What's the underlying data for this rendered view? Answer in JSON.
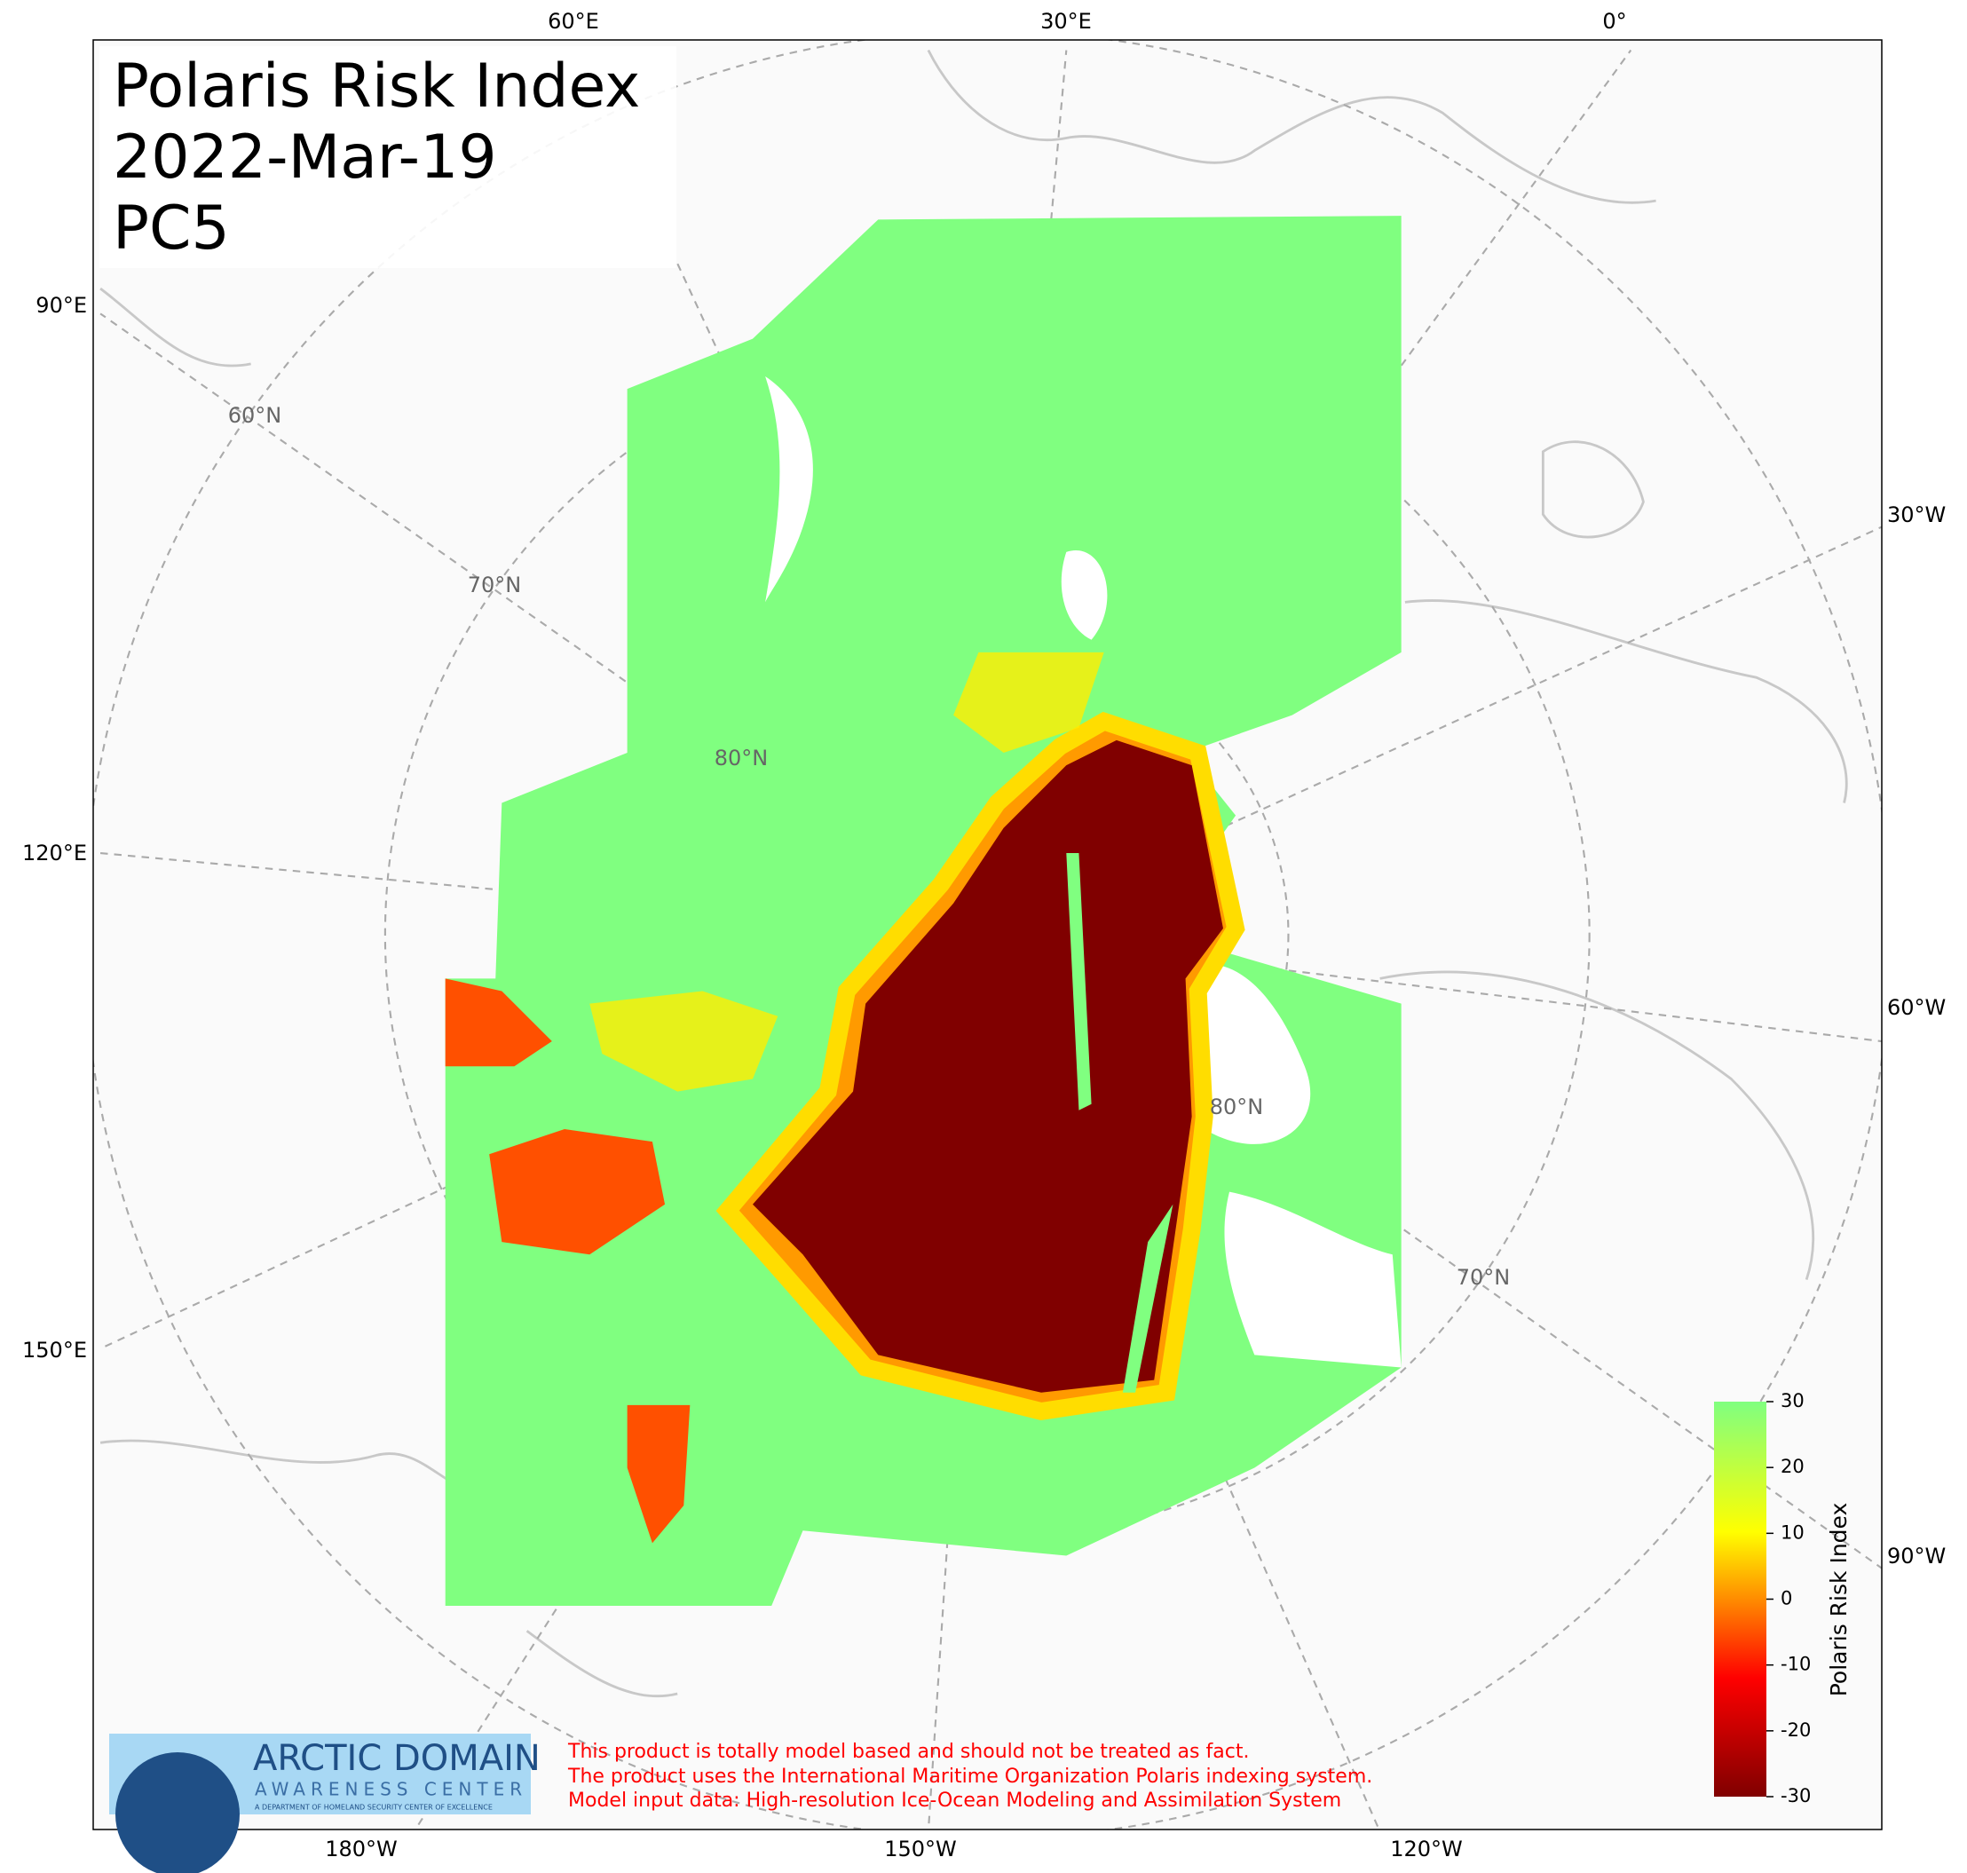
{
  "title": [
    "Polaris Risk Index",
    "2022-Mar-19",
    "PC5"
  ],
  "longitude_labels": {
    "top": [
      "60°E",
      "30°E",
      "0°"
    ],
    "left": [
      "90°E",
      "120°E",
      "150°E"
    ],
    "right": [
      "30°W",
      "60°W",
      "90°W"
    ],
    "bottom": [
      "180°W",
      "150°W",
      "120°W"
    ]
  },
  "latitude_labels": [
    "60°N",
    "70°N",
    "80°N",
    "80°N",
    "70°N"
  ],
  "colorbar": {
    "label": "Polaris Risk Index",
    "lim": [
      -30,
      30
    ],
    "ticks": [
      -30,
      -20,
      -10,
      0,
      10,
      20,
      30
    ]
  },
  "logo": {
    "title": "ARCTIC DOMAIN",
    "subtitle": "AWARENESS CENTER",
    "tagline": "A DEPARTMENT OF HOMELAND SECURITY CENTER OF EXCELLENCE"
  },
  "disclaimer": [
    "This product is totally model based and should not be treated as fact.",
    "The product uses the International Maritime Organization Polaris indexing system.",
    "Model input data: High-resolution Ice-Ocean Modeling and Assimilation System"
  ]
}
